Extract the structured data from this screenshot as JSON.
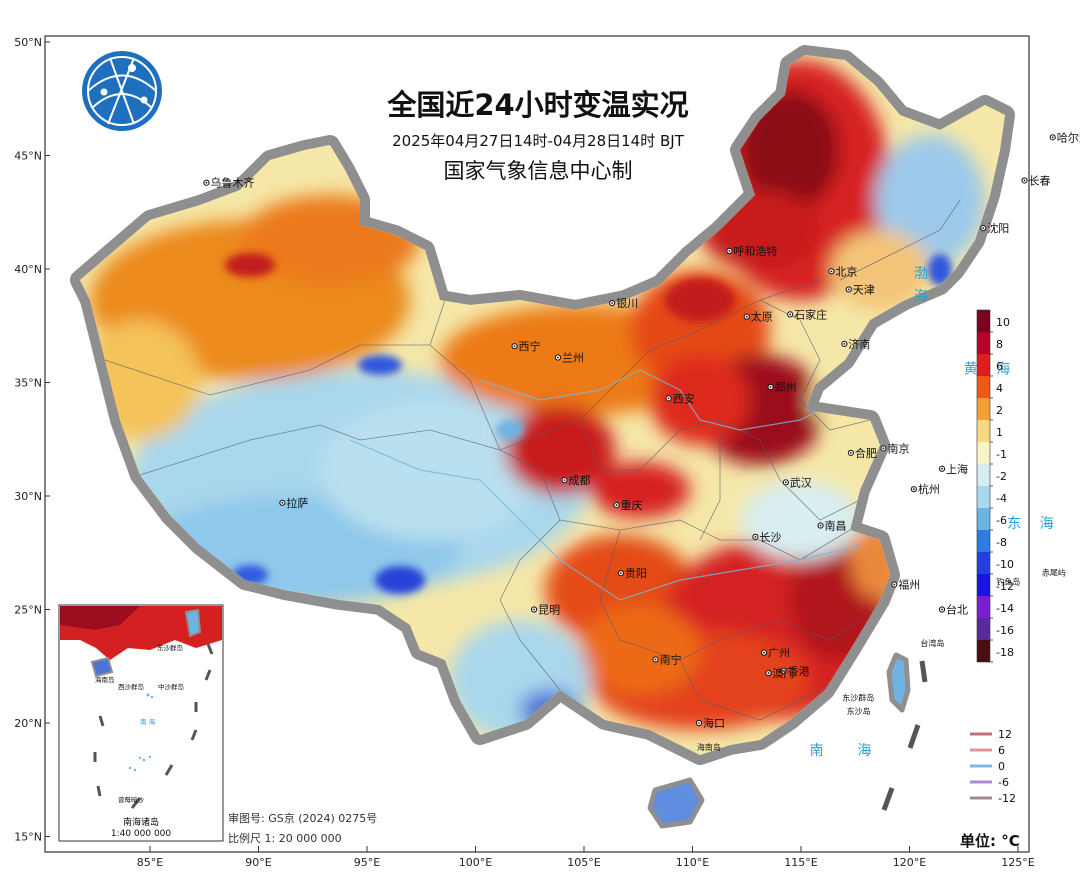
{
  "title": "全国近24小时变温实况",
  "subtitle": "2025年04月27日14时-04月28日14时  BJT",
  "producer": "国家气象信息中心制",
  "lat_ticks": [
    {
      "label": "50°N",
      "lat": 50
    },
    {
      "label": "45°N",
      "lat": 45
    },
    {
      "label": "40°N",
      "lat": 40
    },
    {
      "label": "35°N",
      "lat": 35
    },
    {
      "label": "30°N",
      "lat": 30
    },
    {
      "label": "25°N",
      "lat": 25
    },
    {
      "label": "20°N",
      "lat": 20
    },
    {
      "label": "15°N",
      "lat": 15
    }
  ],
  "lon_ticks": [
    {
      "label": "85°E",
      "lon": 85
    },
    {
      "label": "90°E",
      "lon": 90
    },
    {
      "label": "95°E",
      "lon": 95
    },
    {
      "label": "100°E",
      "lon": 100
    },
    {
      "label": "105°E",
      "lon": 105
    },
    {
      "label": "110°E",
      "lon": 110
    },
    {
      "label": "115°E",
      "lon": 115
    },
    {
      "label": "120°E",
      "lon": 120
    },
    {
      "label": "125°E",
      "lon": 125
    }
  ],
  "cities": [
    {
      "name": "乌鲁木齐",
      "lon": 87.6,
      "lat": 43.8
    },
    {
      "name": "哈尔滨",
      "lon": 126.6,
      "lat": 45.8
    },
    {
      "name": "长春",
      "lon": 125.3,
      "lat": 43.9
    },
    {
      "name": "沈阳",
      "lon": 123.4,
      "lat": 41.8
    },
    {
      "name": "呼和浩特",
      "lon": 111.7,
      "lat": 40.8
    },
    {
      "name": "北京",
      "lon": 116.4,
      "lat": 39.9
    },
    {
      "name": "天津",
      "lon": 117.2,
      "lat": 39.1
    },
    {
      "name": "石家庄",
      "lon": 114.5,
      "lat": 38.0
    },
    {
      "name": "太原",
      "lon": 112.5,
      "lat": 37.9
    },
    {
      "name": "济南",
      "lon": 117.0,
      "lat": 36.7
    },
    {
      "name": "银川",
      "lon": 106.3,
      "lat": 38.5
    },
    {
      "name": "西宁",
      "lon": 101.8,
      "lat": 36.6
    },
    {
      "name": "兰州",
      "lon": 103.8,
      "lat": 36.1
    },
    {
      "name": "西安",
      "lon": 108.9,
      "lat": 34.3
    },
    {
      "name": "郑州",
      "lon": 113.6,
      "lat": 34.8
    },
    {
      "name": "合肥",
      "lon": 117.3,
      "lat": 31.9
    },
    {
      "name": "南京",
      "lon": 118.8,
      "lat": 32.1
    },
    {
      "name": "上海",
      "lon": 121.5,
      "lat": 31.2
    },
    {
      "name": "杭州",
      "lon": 120.2,
      "lat": 30.3
    },
    {
      "name": "武汉",
      "lon": 114.3,
      "lat": 30.6
    },
    {
      "name": "成都",
      "lon": 104.1,
      "lat": 30.7
    },
    {
      "name": "重庆",
      "lon": 106.5,
      "lat": 29.6
    },
    {
      "name": "拉萨",
      "lon": 91.1,
      "lat": 29.7
    },
    {
      "name": "长沙",
      "lon": 112.9,
      "lat": 28.2
    },
    {
      "name": "南昌",
      "lon": 115.9,
      "lat": 28.7
    },
    {
      "name": "贵阳",
      "lon": 106.7,
      "lat": 26.6
    },
    {
      "name": "福州",
      "lon": 119.3,
      "lat": 26.1
    },
    {
      "name": "昆明",
      "lon": 102.7,
      "lat": 25.0
    },
    {
      "name": "台北",
      "lon": 121.5,
      "lat": 25.0
    },
    {
      "name": "南宁",
      "lon": 108.3,
      "lat": 22.8
    },
    {
      "name": "广州",
      "lon": 113.3,
      "lat": 23.1
    },
    {
      "name": "香港",
      "lon": 114.2,
      "lat": 22.3
    },
    {
      "name": "澳门",
      "lon": 113.5,
      "lat": 22.2
    },
    {
      "name": "海口",
      "lon": 110.3,
      "lat": 20.0
    }
  ],
  "seas": [
    {
      "name": "渤",
      "lon": 120.2,
      "lat": 39.6
    },
    {
      "name": "海",
      "lon": 120.2,
      "lat": 38.6
    },
    {
      "name": "黄",
      "lon": 122.5,
      "lat": 35.4
    },
    {
      "name": "海",
      "lon": 124.0,
      "lat": 35.4
    },
    {
      "name": "东",
      "lon": 124.5,
      "lat": 28.6
    },
    {
      "name": "海",
      "lon": 126.0,
      "lat": 28.6
    },
    {
      "name": "南",
      "lon": 115.4,
      "lat": 18.6
    },
    {
      "name": "海",
      "lon": 117.6,
      "lat": 18.6
    }
  ],
  "islands": [
    {
      "name": "钓鱼岛",
      "lon": 124.0,
      "lat": 26.1
    },
    {
      "name": "赤尾屿",
      "lon": 126.1,
      "lat": 26.5
    },
    {
      "name": "台湾岛",
      "lon": 120.5,
      "lat": 23.4
    },
    {
      "name": "东沙群岛",
      "lon": 116.9,
      "lat": 21.0
    },
    {
      "name": "东沙岛",
      "lon": 117.1,
      "lat": 20.4
    },
    {
      "name": "海南岛",
      "lon": 110.2,
      "lat": 18.8
    }
  ],
  "inset": {
    "title": "南海诸岛",
    "scale": "1:40 000 000",
    "labels": [
      "东沙群岛",
      "西沙群岛",
      "中沙群岛",
      "南 海",
      "海南岛",
      "曾母暗沙"
    ]
  },
  "approval": "审图号: GS京 (2024) 0275号",
  "scale_text": "比例尺 1: 20 000 000",
  "unit": "单位: °C",
  "colorbar": {
    "labels": [
      "10",
      "8",
      "6",
      "4",
      "2",
      "1",
      "-1",
      "-2",
      "-4",
      "-6",
      "-8",
      "-10",
      "-12",
      "-14",
      "-16",
      "-18"
    ],
    "colors": [
      "#7b0022",
      "#b5002a",
      "#de1e1e",
      "#ec5a14",
      "#f3a035",
      "#f8d982",
      "#f8f4c6",
      "#d7ecf0",
      "#a9d7ec",
      "#6db4e3",
      "#2e7ce0",
      "#2340de",
      "#1616e0",
      "#7a1fd0",
      "#5a2a9a",
      "#4a0e10"
    ]
  },
  "contour_legend": [
    {
      "label": "12",
      "color": "#c46f80"
    },
    {
      "label": "6",
      "color": "#e59193"
    },
    {
      "label": "0",
      "color": "#7eb5e8"
    },
    {
      "label": "-6",
      "color": "#a98ed3"
    },
    {
      "label": "-12",
      "color": "#a08a88"
    }
  ]
}
